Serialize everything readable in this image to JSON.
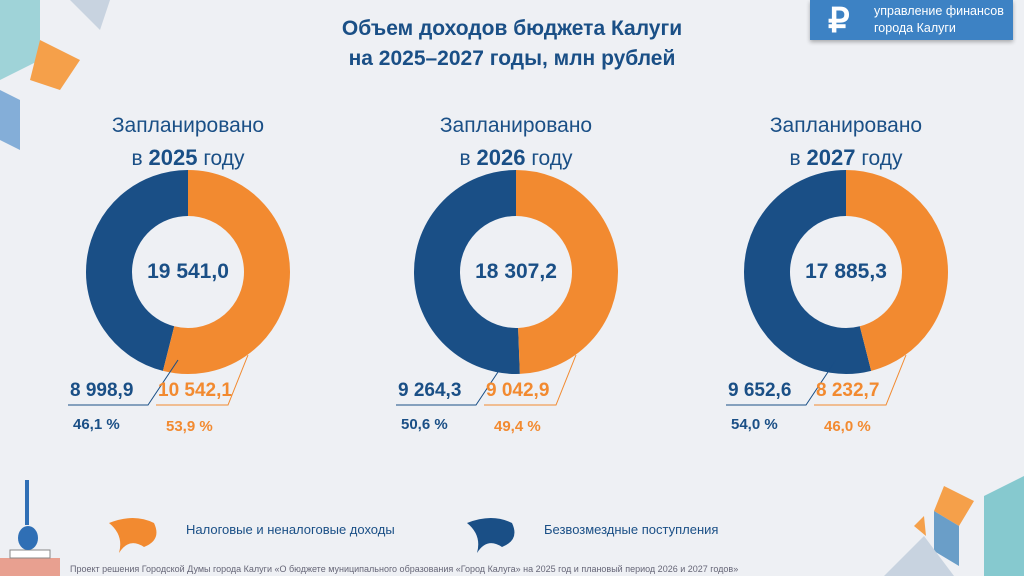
{
  "header": {
    "title_line1": "Объем доходов бюджета Калуги",
    "title_line2": "на 2025–2027 годы, млн рублей"
  },
  "logo": {
    "symbol": "₽",
    "line1": "управление финансов",
    "line2": "города Калуги"
  },
  "colors": {
    "tax": "#f28a30",
    "grants": "#1a4f86"
  },
  "chart_data": {
    "type": "pie",
    "subtype": "donut",
    "unit": "млн рублей",
    "series_names": [
      "Налоговые и неналоговые доходы",
      "Безвозмездные поступления"
    ],
    "charts": [
      {
        "heading": "Запланировано",
        "year_prefix": "в",
        "year": "2025",
        "year_suffix": "году",
        "total": "19 541,0",
        "tax": 10542.1,
        "tax_label": "10 542,1",
        "tax_pct": "53,9 %",
        "grants": 8998.9,
        "grants_label": "8 998,9",
        "grants_pct": "46,1 %"
      },
      {
        "heading": "Запланировано",
        "year_prefix": "в",
        "year": "2026",
        "year_suffix": "году",
        "total": "18 307,2",
        "tax": 9042.9,
        "tax_label": "9 042,9",
        "tax_pct": "49,4 %",
        "grants": 9264.3,
        "grants_label": "9 264,3",
        "grants_pct": "50,6 %"
      },
      {
        "heading": "Запланировано",
        "year_prefix": "в",
        "year": "2027",
        "year_suffix": "году",
        "total": "17 885,3",
        "tax": 8232.7,
        "tax_label": "8 232,7",
        "tax_pct": "46,0 %",
        "grants": 9652.6,
        "grants_label": "9 652,6",
        "grants_pct": "54,0 %"
      }
    ]
  },
  "legend": {
    "tax": "Налоговые и неналоговые доходы",
    "grants": "Безвозмездные поступления"
  },
  "footer": "Проект решения Городской Думы города Калуги «О бюджете муниципального образования «Город Калуга» на 2025 год и плановый период 2026 и 2027 годов»"
}
